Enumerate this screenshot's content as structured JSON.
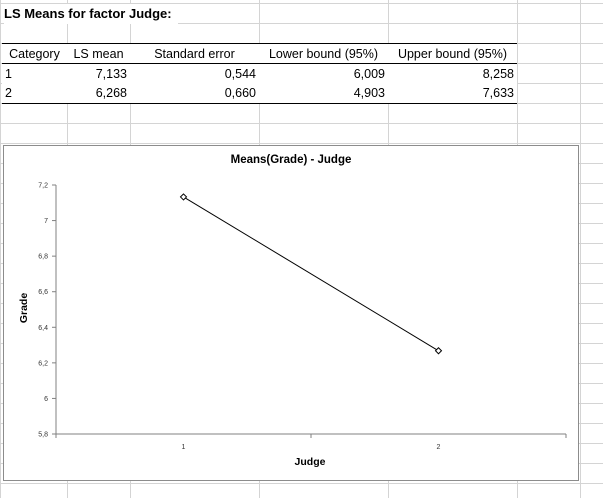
{
  "sheet": {
    "title": "LS Means for factor Judge:"
  },
  "table": {
    "headers": [
      "Category",
      "LS mean",
      "Standard error",
      "Lower bound (95%)",
      "Upper bound (95%)"
    ],
    "rows": [
      [
        "1",
        "7,133",
        "0,544",
        "6,009",
        "8,258"
      ],
      [
        "2",
        "6,268",
        "0,660",
        "4,903",
        "7,633"
      ]
    ]
  },
  "chart_data": {
    "type": "line",
    "title": "Means(Grade) - Judge",
    "xlabel": "Judge",
    "ylabel": "Grade",
    "categories": [
      "1",
      "2"
    ],
    "series": [
      {
        "values": [
          7.133,
          6.268
        ]
      }
    ],
    "ylim": [
      5.8,
      7.2
    ],
    "yticks": [
      "5,8",
      "6",
      "6,2",
      "6,4",
      "6,6",
      "6,8",
      "7",
      "7,2"
    ],
    "grid": false,
    "legend": "none",
    "marker": "diamond-open",
    "line_color": "#000000"
  }
}
